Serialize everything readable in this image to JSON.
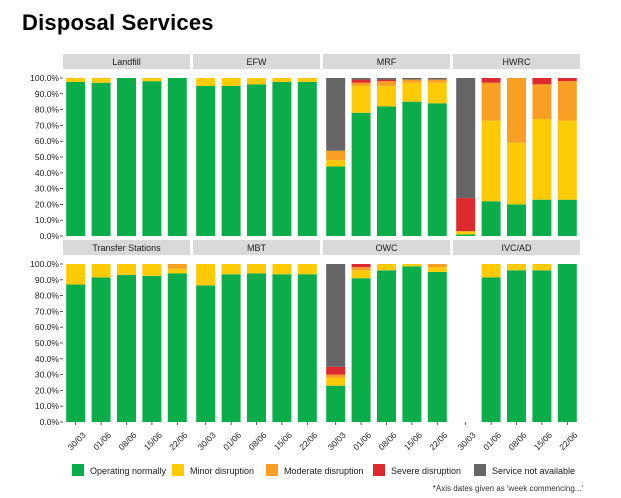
{
  "page": {
    "title": "Disposal Services",
    "footnote": "*Axis dates given as 'week commencing...'"
  },
  "chart_data": {
    "type": "bar",
    "stacked": true,
    "categories": [
      "30/03",
      "01/06",
      "08/06",
      "15/06",
      "22/06"
    ],
    "y_ticks": [
      "0.0%",
      "10.0%",
      "20.0%",
      "30.0%",
      "40.0%",
      "50.0%",
      "60.0%",
      "70.0%",
      "80.0%",
      "90.0%",
      "100.0%"
    ],
    "ylim": [
      0,
      100
    ],
    "legend_position": "bottom",
    "series_order": [
      "Operating normally",
      "Minor disruption",
      "Moderate disruption",
      "Severe disruption",
      "Service not available"
    ],
    "colors": {
      "Operating normally": "#0aad4a",
      "Minor disruption": "#fccb05",
      "Moderate disruption": "#f9a024",
      "Severe disruption": "#dc2a2f",
      "Service not available": "#666666"
    },
    "panels": [
      {
        "name": "Landfill",
        "values": [
          [
            97.5,
            2.5,
            0,
            0,
            0
          ],
          [
            97,
            3,
            0,
            0,
            0
          ],
          [
            100,
            0,
            0,
            0,
            0
          ],
          [
            98,
            2,
            0,
            0,
            0
          ],
          [
            100,
            0,
            0,
            0,
            0
          ]
        ]
      },
      {
        "name": "EFW",
        "values": [
          [
            95,
            5,
            0,
            0,
            0
          ],
          [
            95,
            5,
            0,
            0,
            0
          ],
          [
            96,
            4,
            0,
            0,
            0
          ],
          [
            97.5,
            2.5,
            0,
            0,
            0
          ],
          [
            97.5,
            2.5,
            0,
            0,
            0
          ]
        ]
      },
      {
        "name": "MRF",
        "values": [
          [
            44,
            4,
            6,
            0,
            46
          ],
          [
            78,
            17,
            2,
            2,
            1
          ],
          [
            82,
            13,
            3,
            1,
            1
          ],
          [
            85,
            12,
            2,
            0,
            1
          ],
          [
            84,
            13,
            2,
            0,
            1
          ]
        ]
      },
      {
        "name": "HWRC",
        "values": [
          [
            1,
            2,
            0,
            21,
            76
          ],
          [
            22,
            51,
            24,
            3,
            0
          ],
          [
            20,
            39,
            41,
            0,
            0
          ],
          [
            23,
            51,
            22,
            4,
            0
          ],
          [
            23,
            50,
            25,
            2,
            0
          ]
        ]
      },
      {
        "name": "Transfer Stations",
        "values": [
          [
            87,
            13,
            0,
            0,
            0
          ],
          [
            91.5,
            8.5,
            0,
            0,
            0
          ],
          [
            93,
            7,
            0,
            0,
            0
          ],
          [
            92.5,
            7.5,
            0,
            0,
            0
          ],
          [
            94,
            3,
            3,
            0,
            0
          ]
        ]
      },
      {
        "name": "MBT",
        "values": [
          [
            86.5,
            13.5,
            0,
            0,
            0
          ],
          [
            93.5,
            6.5,
            0,
            0,
            0
          ],
          [
            94,
            6,
            0,
            0,
            0
          ],
          [
            93.5,
            6.5,
            0,
            0,
            0
          ],
          [
            93.5,
            6.5,
            0,
            0,
            0
          ]
        ]
      },
      {
        "name": "OWC",
        "values": [
          [
            23,
            5,
            2,
            5,
            65
          ],
          [
            91,
            5,
            2,
            2,
            0
          ],
          [
            96,
            4,
            0,
            0,
            0
          ],
          [
            98.5,
            1.5,
            0,
            0,
            0
          ],
          [
            95,
            3,
            2,
            0,
            0
          ]
        ]
      },
      {
        "name": "IVC/AD",
        "values": [
          null,
          [
            91.5,
            8.5,
            0,
            0,
            0
          ],
          [
            96,
            4,
            0,
            0,
            0
          ],
          [
            96,
            4,
            0,
            0,
            0
          ],
          [
            100,
            0,
            0,
            0,
            0
          ]
        ]
      }
    ]
  }
}
